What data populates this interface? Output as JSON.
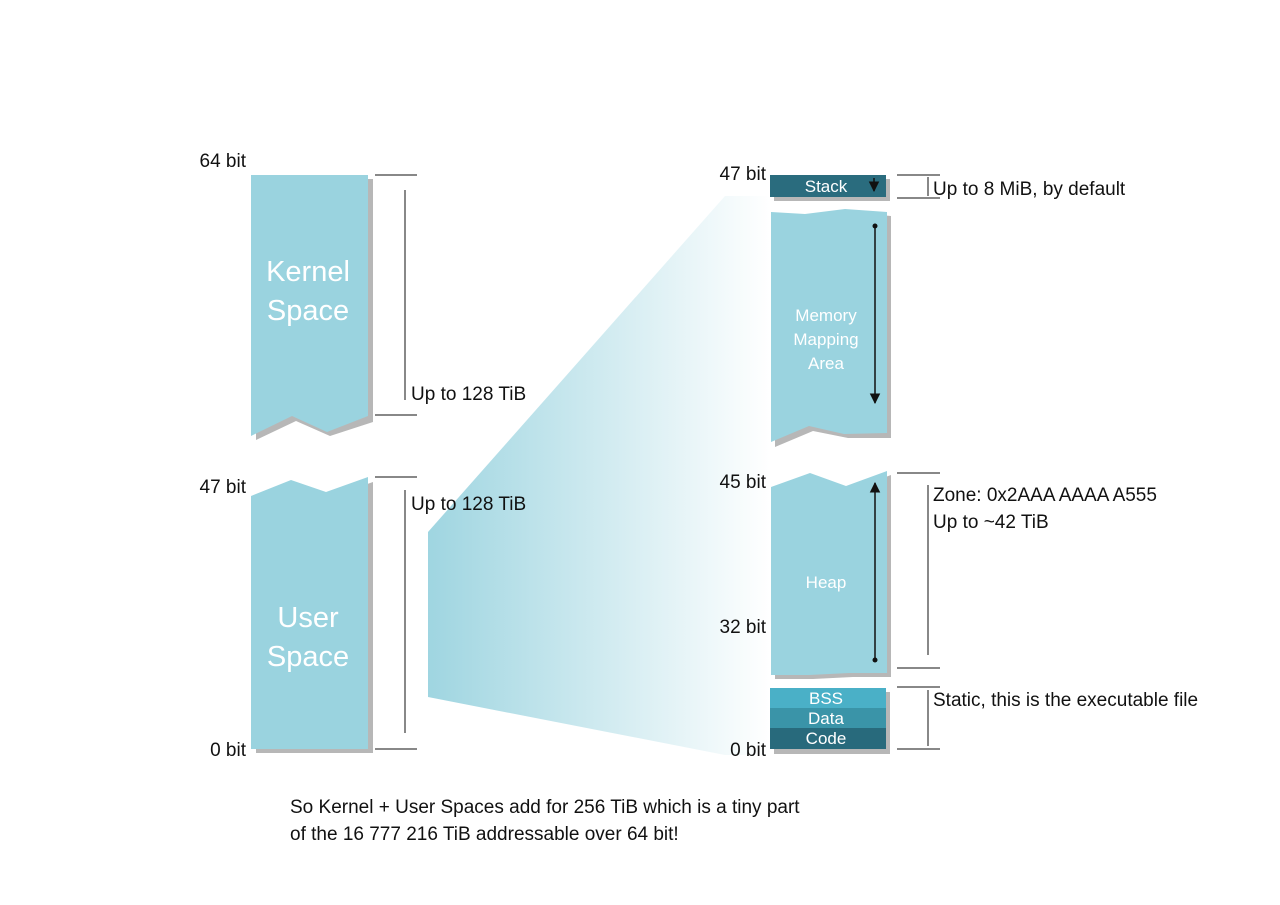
{
  "colors": {
    "block_light": "#9ad3df",
    "block_shadow": "#b7b7b7",
    "stack_dark": "#2a6c7e",
    "bss": "#4ab0c7",
    "data_seg": "#3a94a8",
    "code_seg": "#286a7c",
    "line": "#111111"
  },
  "left": {
    "kernel_label": [
      "Kernel",
      "Space"
    ],
    "user_label": [
      "User",
      "Space"
    ],
    "bit_64": "64 bit",
    "bit_47": "47 bit",
    "bit_0": "0 bit",
    "kernel_size": "Up to 128 TiB",
    "user_size": "Up to 128 TiB"
  },
  "right": {
    "bit_47": "47 bit",
    "bit_45": "45 bit",
    "bit_32": "32 bit",
    "bit_0": "0 bit",
    "stack_label": "Stack",
    "stack_note": "Up to 8 MiB, by default",
    "mmap_label": [
      "Memory",
      "Mapping",
      "Area"
    ],
    "heap_label": "Heap",
    "heap_zone": "Zone: 0x2AAA AAAA A555",
    "heap_size": "Up to ~42 TiB",
    "bss_label": "BSS",
    "data_label": "Data",
    "code_label": "Code",
    "static_note": "Static, this is the executable file"
  },
  "caption": [
    "So Kernel + User Spaces add for 256 TiB which is a tiny part",
    "of the 16 777 216 TiB addressable over 64 bit!"
  ]
}
